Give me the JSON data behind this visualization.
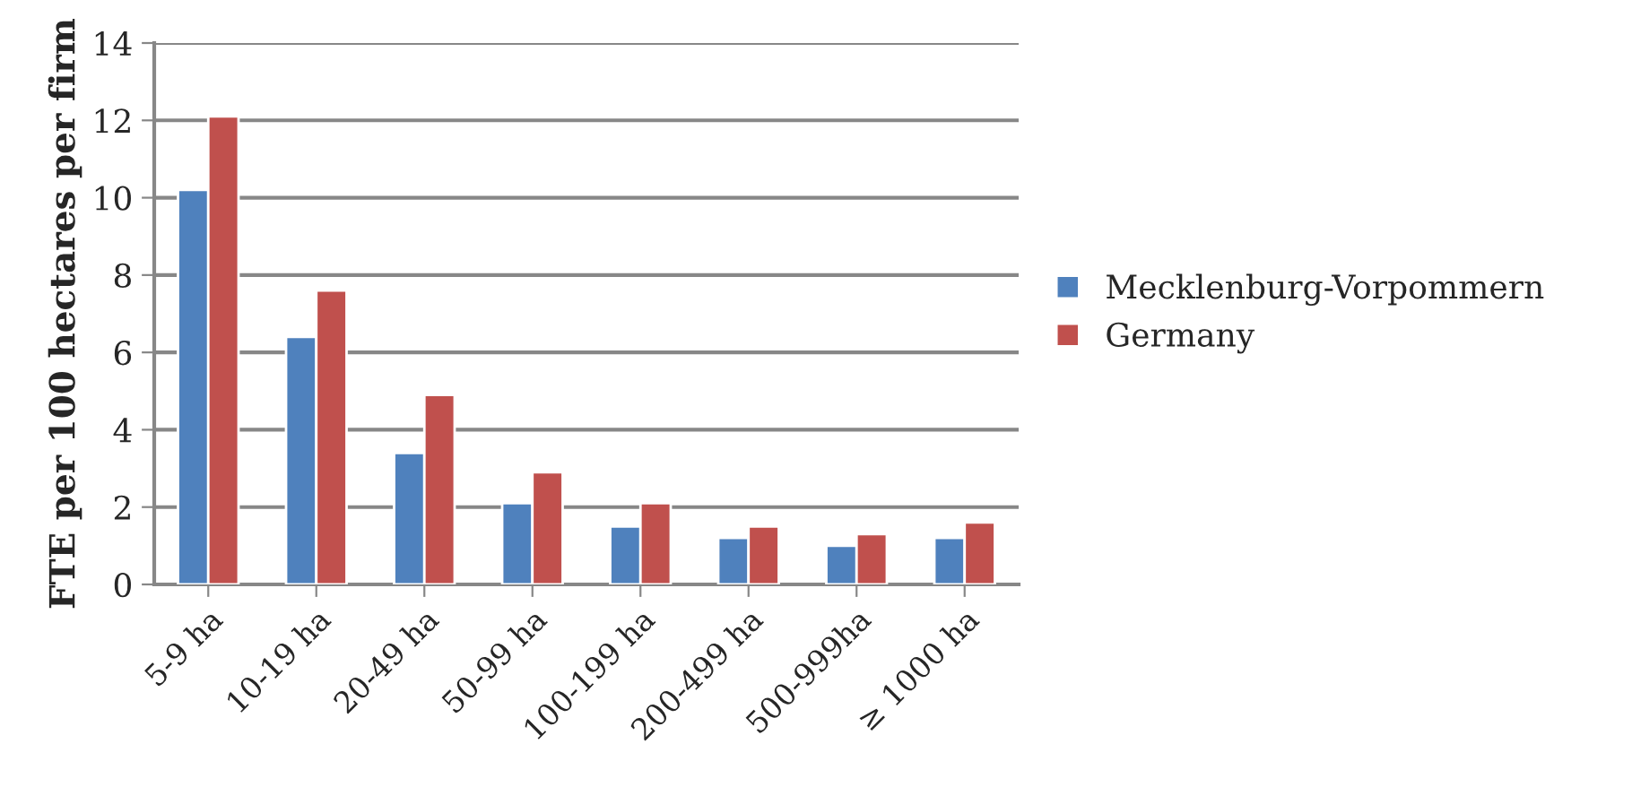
{
  "chart_data": {
    "type": "bar",
    "ylabel": "FTE per 100 hectares per firm",
    "categories": [
      "5-9 ha",
      "10-19 ha",
      "20-49 ha",
      "50-99 ha",
      "100-199 ha",
      "200-499 ha",
      "500-999ha",
      "≥ 1000 ha"
    ],
    "series": [
      {
        "name": "Mecklenburg-Vorpommern",
        "color": "#4f81bd",
        "values": [
          10.2,
          6.4,
          3.4,
          2.1,
          1.5,
          1.2,
          1.0,
          1.2
        ]
      },
      {
        "name": "Germany",
        "color": "#c0504d",
        "values": [
          12.1,
          7.6,
          4.9,
          2.9,
          2.1,
          1.5,
          1.3,
          1.6
        ]
      }
    ],
    "ylim": [
      0,
      14
    ],
    "yticks": [
      0,
      2,
      4,
      6,
      8,
      10,
      12,
      14
    ],
    "grid": "y",
    "legend": "right"
  }
}
